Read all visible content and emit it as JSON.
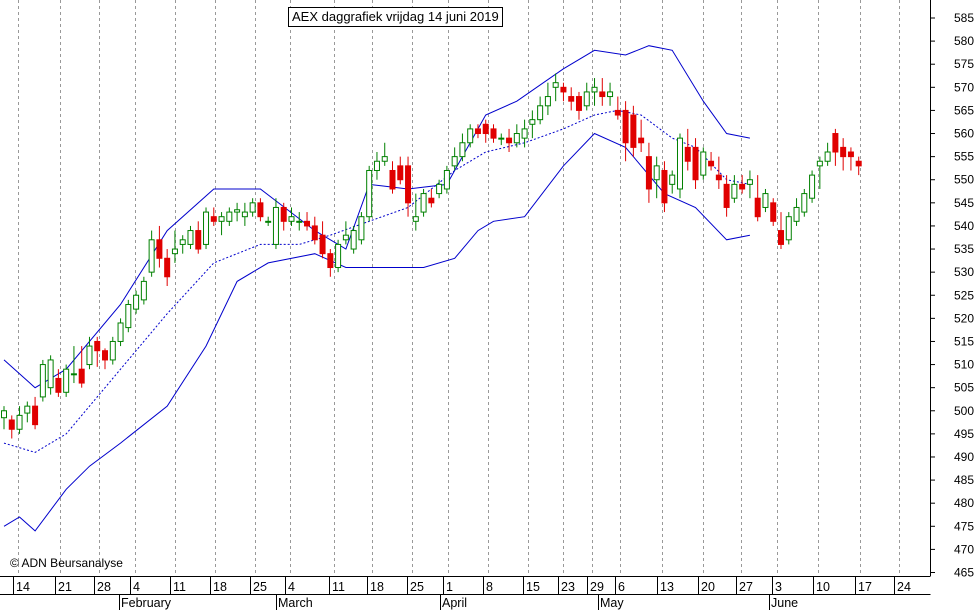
{
  "chart_data": {
    "type": "candlestick",
    "title": "AEX daggrafiek vrijdag 14 juni 2019",
    "copyright": "© ADN Beursanalyse",
    "ylim": [
      462.5,
      590
    ],
    "y_ticks": [
      465,
      470,
      475,
      480,
      485,
      490,
      495,
      500,
      505,
      510,
      515,
      520,
      525,
      530,
      535,
      540,
      545,
      550,
      555,
      560,
      565,
      570,
      575,
      580,
      585
    ],
    "x_tick_labels": [
      "14",
      "21",
      "28",
      "4",
      "11",
      "18",
      "25",
      "4",
      "11",
      "18",
      "25",
      "1",
      "8",
      "15",
      "23",
      "29",
      "6",
      "13",
      "20",
      "27",
      "3",
      "10",
      "17",
      "24"
    ],
    "month_labels": [
      "February",
      "March",
      "April",
      "May",
      "June"
    ],
    "colors": {
      "up": "#008000",
      "down": "#e00000",
      "band": "#0000cc",
      "ma": "#0000cc",
      "grid": "#999999"
    },
    "candles": [
      [
        498.5,
        501,
        496,
        500
      ],
      [
        498,
        499,
        494,
        496
      ],
      [
        496,
        501,
        495,
        499
      ],
      [
        499.5,
        502,
        497.5,
        501
      ],
      [
        501,
        503,
        496,
        497
      ],
      [
        503,
        511,
        502,
        510
      ],
      [
        505,
        512,
        503.5,
        511
      ],
      [
        507,
        509,
        503,
        504
      ],
      [
        504,
        510,
        503,
        509
      ],
      [
        508,
        514,
        506,
        508
      ],
      [
        509,
        514,
        505,
        506
      ],
      [
        510,
        516,
        509,
        514
      ],
      [
        515,
        516,
        509.5,
        513
      ],
      [
        513,
        513.5,
        509,
        511
      ],
      [
        511,
        516,
        510,
        515
      ],
      [
        515,
        520,
        514,
        519
      ],
      [
        518,
        524,
        517,
        523
      ],
      [
        522,
        526,
        521,
        525
      ],
      [
        524,
        529,
        523,
        528
      ],
      [
        530,
        539,
        529,
        537
      ],
      [
        537,
        540,
        531,
        533
      ],
      [
        533,
        535,
        527,
        529
      ],
      [
        534,
        539,
        532,
        535
      ],
      [
        536,
        538,
        534,
        537
      ],
      [
        536,
        540,
        535,
        539
      ],
      [
        539,
        541,
        534,
        535
      ],
      [
        536,
        544,
        535,
        543
      ],
      [
        542,
        544,
        540,
        541
      ],
      [
        541,
        543,
        538,
        542
      ],
      [
        541,
        544,
        540,
        543
      ],
      [
        543,
        545,
        541,
        543.5
      ],
      [
        542,
        545,
        540,
        543
      ],
      [
        543,
        546,
        542,
        545
      ],
      [
        545,
        546,
        541,
        542
      ],
      [
        541,
        542,
        540,
        541
      ],
      [
        536,
        546,
        535,
        544
      ],
      [
        544,
        545,
        539,
        541
      ],
      [
        541,
        544,
        540,
        542
      ],
      [
        541,
        543,
        539,
        541
      ],
      [
        541,
        543,
        539,
        540
      ],
      [
        540,
        542,
        536,
        537
      ],
      [
        538,
        541,
        533,
        534
      ],
      [
        534,
        535,
        529,
        531
      ],
      [
        531,
        537,
        530,
        536
      ],
      [
        537,
        541,
        536,
        538
      ],
      [
        535,
        540,
        534,
        539
      ],
      [
        537,
        543,
        536,
        542
      ],
      [
        542,
        553,
        541,
        552
      ],
      [
        552,
        556,
        550,
        554
      ],
      [
        554,
        558,
        553,
        555
      ],
      [
        552,
        554,
        547,
        548
      ],
      [
        553,
        555,
        549,
        550
      ],
      [
        553,
        555,
        542,
        545
      ],
      [
        541,
        547,
        539,
        542
      ],
      [
        543,
        548,
        542,
        547
      ],
      [
        546,
        548,
        544,
        545
      ],
      [
        547,
        550,
        546,
        549
      ],
      [
        548,
        553,
        547,
        552
      ],
      [
        553,
        557,
        552,
        555
      ],
      [
        555,
        560,
        554,
        558
      ],
      [
        558,
        562,
        557,
        561
      ],
      [
        561,
        562,
        559,
        560
      ],
      [
        562,
        563,
        558,
        560
      ],
      [
        561,
        562,
        558,
        559
      ],
      [
        559,
        560,
        557.5,
        559
      ],
      [
        559,
        561,
        556,
        558
      ],
      [
        558,
        562,
        557,
        560
      ],
      [
        559,
        563,
        557,
        561
      ],
      [
        562,
        565,
        559,
        563
      ],
      [
        563,
        568,
        562,
        566
      ],
      [
        566,
        571,
        564,
        568
      ],
      [
        570,
        573,
        567,
        571
      ],
      [
        570,
        571,
        567,
        569
      ],
      [
        568,
        570,
        565,
        567
      ],
      [
        568,
        569,
        563,
        565
      ],
      [
        566,
        571,
        565,
        569
      ],
      [
        569,
        572,
        566,
        570
      ],
      [
        569,
        572,
        566,
        568
      ],
      [
        568,
        571,
        566,
        569
      ],
      [
        565,
        568,
        563,
        564
      ],
      [
        565,
        567,
        554,
        558
      ],
      [
        564,
        566,
        555,
        557
      ],
      [
        559,
        563,
        556,
        558
      ],
      [
        555,
        558,
        545,
        548
      ],
      [
        550,
        555,
        546,
        553
      ],
      [
        552,
        554,
        543,
        545
      ],
      [
        549,
        552,
        547,
        551
      ],
      [
        548,
        560,
        546,
        559
      ],
      [
        557,
        561,
        552,
        554
      ],
      [
        557,
        559,
        548,
        550
      ],
      [
        551,
        557,
        550,
        556
      ],
      [
        554,
        556,
        552,
        553
      ],
      [
        551,
        555,
        548,
        550
      ],
      [
        549,
        551,
        542,
        544
      ],
      [
        546,
        551,
        545,
        549
      ],
      [
        549,
        551,
        547,
        548
      ],
      [
        549,
        552,
        546,
        550
      ],
      [
        546,
        551,
        541,
        542
      ],
      [
        544,
        548,
        543,
        547
      ],
      [
        545,
        546,
        540,
        541
      ],
      [
        539,
        543,
        535,
        536
      ],
      [
        537,
        543,
        536,
        542
      ],
      [
        541,
        546,
        540,
        544
      ],
      [
        543,
        548,
        542,
        547
      ],
      [
        546,
        552,
        545,
        551
      ],
      [
        553,
        555,
        548,
        554
      ],
      [
        554,
        558,
        553,
        556
      ],
      [
        560,
        561,
        553,
        556
      ],
      [
        557,
        559,
        552,
        555
      ],
      [
        556,
        557,
        552,
        555
      ],
      [
        554,
        555,
        551,
        553
      ]
    ],
    "bollinger_upper": [
      [
        0,
        511
      ],
      [
        4,
        505
      ],
      [
        8,
        509
      ],
      [
        15,
        523
      ],
      [
        21,
        539
      ],
      [
        27,
        548
      ],
      [
        33,
        548
      ],
      [
        40,
        539
      ],
      [
        44,
        535
      ],
      [
        47,
        549
      ],
      [
        52,
        548
      ],
      [
        57,
        549
      ],
      [
        62,
        564
      ],
      [
        66,
        567
      ],
      [
        72,
        574
      ],
      [
        76,
        578
      ],
      [
        80,
        577
      ],
      [
        83,
        579
      ],
      [
        86,
        578
      ],
      [
        90,
        567
      ],
      [
        93,
        560
      ],
      [
        96,
        559
      ]
    ],
    "bollinger_middle": [
      [
        0,
        493
      ],
      [
        2,
        492
      ],
      [
        4,
        491
      ],
      [
        8,
        495
      ],
      [
        15,
        509
      ],
      [
        21,
        521
      ],
      [
        27,
        532
      ],
      [
        33,
        536
      ],
      [
        38,
        536
      ],
      [
        42,
        538
      ],
      [
        47,
        541
      ],
      [
        52,
        544
      ],
      [
        58,
        552
      ],
      [
        62,
        556
      ],
      [
        67,
        558
      ],
      [
        72,
        561
      ],
      [
        76,
        564
      ],
      [
        79,
        565
      ],
      [
        82,
        564
      ],
      [
        86,
        559
      ],
      [
        89,
        557
      ],
      [
        93,
        550
      ],
      [
        96,
        549
      ]
    ],
    "bollinger_lower": [
      [
        0,
        475
      ],
      [
        2,
        477
      ],
      [
        4,
        474
      ],
      [
        8,
        483
      ],
      [
        11,
        488
      ],
      [
        15,
        493
      ],
      [
        21,
        501
      ],
      [
        26,
        514
      ],
      [
        30,
        528
      ],
      [
        34,
        532
      ],
      [
        40,
        534
      ],
      [
        44,
        531
      ],
      [
        50,
        531
      ],
      [
        54,
        531
      ],
      [
        58,
        533
      ],
      [
        61,
        539
      ],
      [
        63,
        541
      ],
      [
        67,
        542
      ],
      [
        72,
        553
      ],
      [
        76,
        560
      ],
      [
        80,
        557
      ],
      [
        85,
        547
      ],
      [
        89,
        544
      ],
      [
        93,
        537
      ],
      [
        96,
        538
      ]
    ]
  }
}
